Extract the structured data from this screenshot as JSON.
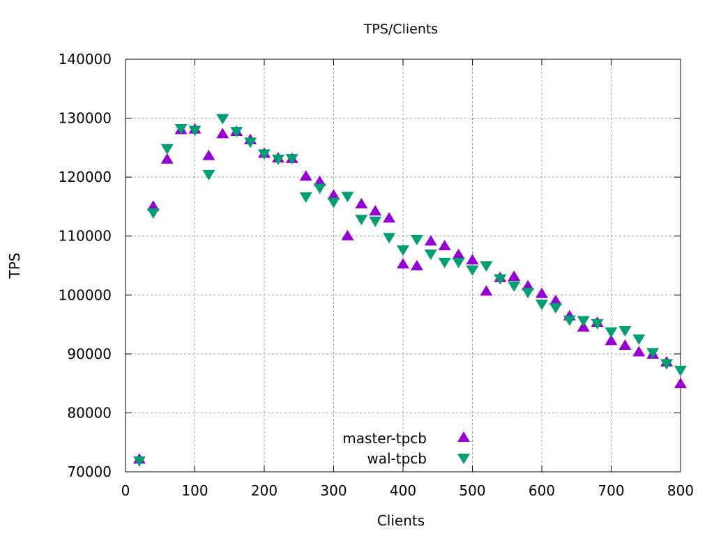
{
  "chart_data": {
    "type": "scatter",
    "title": "TPS/Clients",
    "xlabel": "Clients",
    "ylabel": "TPS",
    "xlim": [
      0,
      800
    ],
    "ylim": [
      70000,
      140000
    ],
    "xticks": [
      0,
      100,
      200,
      300,
      400,
      500,
      600,
      700,
      800
    ],
    "yticks": [
      70000,
      80000,
      90000,
      100000,
      110000,
      120000,
      130000,
      140000
    ],
    "grid": true,
    "legend_position": "bottom-center",
    "x": [
      20,
      40,
      60,
      80,
      100,
      120,
      140,
      160,
      180,
      200,
      220,
      240,
      260,
      280,
      300,
      320,
      340,
      360,
      380,
      400,
      420,
      440,
      460,
      480,
      500,
      520,
      540,
      560,
      580,
      600,
      620,
      640,
      660,
      680,
      700,
      720,
      740,
      760,
      780,
      800
    ],
    "series": [
      {
        "name": "master-tpcb",
        "marker": "triangle-up",
        "color": "#9400d3",
        "values": [
          72100,
          115000,
          123000,
          128000,
          128100,
          123600,
          127300,
          127700,
          126300,
          124000,
          123200,
          123100,
          120100,
          119200,
          116900,
          110000,
          115400,
          114200,
          113000,
          105200,
          104900,
          109100,
          108300,
          106800,
          105900,
          100600,
          102900,
          103100,
          101500,
          100200,
          99000,
          96400,
          94500,
          95300,
          92200,
          91400,
          90300,
          89900,
          88600,
          84900
        ]
      },
      {
        "name": "wal-tpcb",
        "marker": "triangle-down",
        "color": "#009e73",
        "values": [
          71900,
          114000,
          124900,
          128300,
          128000,
          120500,
          130000,
          127800,
          126000,
          124000,
          123100,
          123200,
          116700,
          118200,
          115800,
          116800,
          112900,
          112600,
          109800,
          107700,
          109500,
          107000,
          105600,
          105600,
          104300,
          105000,
          102800,
          101600,
          100500,
          98500,
          97900,
          95800,
          95700,
          95200,
          93800,
          94000,
          92600,
          90300,
          88400,
          87300
        ]
      }
    ]
  }
}
